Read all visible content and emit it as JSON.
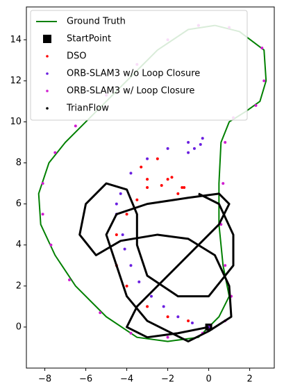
{
  "chart_data": {
    "type": "trajectory",
    "xlim": [
      -8.9,
      3.2
    ],
    "ylim": [
      -2.0,
      15.6
    ],
    "xticks": [
      {
        "value": -8,
        "label": "−8"
      },
      {
        "value": -6,
        "label": "−6"
      },
      {
        "value": -4,
        "label": "−4"
      },
      {
        "value": -2,
        "label": "−2"
      },
      0,
      2
    ],
    "yticks": [
      0,
      2,
      4,
      6,
      8,
      10,
      12,
      14
    ],
    "legend": "upper left",
    "series": [
      {
        "name": "Ground Truth",
        "color": "#008000",
        "mode": "line",
        "x": [
          0.3,
          1.5,
          2.7,
          2.8,
          2.5,
          1.8,
          1.0,
          0.6,
          0.5,
          0.5,
          0.7,
          1.0,
          0.5,
          -0.5,
          -2.0,
          -3.5,
          -5.0,
          -6.5,
          -7.5,
          -8.2,
          -8.3,
          -7.8,
          -7.0,
          -5.5,
          -4.0,
          -2.5,
          -1.0,
          0.3
        ],
        "y": [
          14.7,
          14.4,
          13.5,
          12.0,
          11.0,
          10.5,
          10.0,
          9.0,
          7.0,
          5.0,
          3.0,
          1.5,
          0.5,
          -0.5,
          -0.7,
          -0.5,
          0.5,
          2.0,
          3.5,
          5.0,
          6.5,
          8.0,
          9.0,
          10.5,
          12.0,
          13.5,
          14.5,
          14.7
        ]
      },
      {
        "name": "StartPoint",
        "color": "#000000",
        "mode": "square",
        "x": [
          0
        ],
        "y": [
          0
        ]
      },
      {
        "name": "DSO",
        "color": "#ff0000",
        "mode": "scatter",
        "x": [
          0.0,
          -1.0,
          -2.0,
          -3.0,
          -4.0,
          -4.5,
          -4.5,
          -4.0,
          -3.5,
          -3.0,
          -2.0,
          -1.3,
          -1.5,
          -2.3,
          -3.0,
          -3.3,
          -2.5,
          -1.8,
          -1.2
        ],
        "y": [
          0.0,
          0.3,
          0.5,
          1.0,
          2.0,
          3.0,
          4.5,
          5.5,
          6.2,
          6.8,
          7.2,
          6.8,
          6.5,
          6.9,
          7.2,
          7.8,
          8.2,
          7.3,
          6.8
        ]
      },
      {
        "name": "ORB-SLAM3 w/o Loop Closure",
        "color": "#6a1fe0",
        "mode": "scatter",
        "x": [
          0.0,
          -0.8,
          -1.5,
          -2.2,
          -2.8,
          -3.4,
          -3.8,
          -4.1,
          -4.2,
          -4.5,
          -4.5,
          -4.3,
          -3.8,
          -3.0,
          -2.0,
          -1.0,
          -0.3,
          -0.4,
          -0.7,
          -1.0
        ],
        "y": [
          0.0,
          0.2,
          0.5,
          1.0,
          1.5,
          2.2,
          3.0,
          3.8,
          4.5,
          5.5,
          6.0,
          6.5,
          7.5,
          8.2,
          8.7,
          9.0,
          9.2,
          8.9,
          8.7,
          8.5
        ]
      },
      {
        "name": "ORB-SLAM3 w/ Loop Closure",
        "color": "#d01ed0",
        "mode": "scatter",
        "x": [
          -0.5,
          1.0,
          2.6,
          2.7,
          2.3,
          1.2,
          0.8,
          0.7,
          0.6,
          0.8,
          1.1,
          0.8,
          -0.3,
          -2.0,
          -3.8,
          -5.3,
          -6.8,
          -7.7,
          -8.1,
          -8.1,
          -7.5,
          -6.5,
          -5.0,
          -3.5,
          -2.0,
          -0.5
        ],
        "y": [
          14.7,
          14.6,
          13.6,
          12.0,
          10.8,
          10.2,
          9.0,
          7.0,
          5.0,
          3.0,
          1.5,
          0.3,
          -0.3,
          -0.5,
          -0.3,
          0.7,
          2.3,
          4.0,
          5.5,
          7.0,
          8.5,
          9.8,
          11.3,
          12.8,
          14.0,
          14.7
        ]
      },
      {
        "name": "TrianFlow",
        "color": "#000000",
        "mode": "path",
        "x": [
          0.0,
          -1.5,
          -3.0,
          -4.0,
          -3.5,
          -2.5,
          -1.5,
          -0.5,
          0.5,
          1.0,
          0.5,
          -1.0,
          -3.0,
          -4.5,
          -5.0,
          -4.5,
          -4.0,
          -3.0,
          -2.0,
          -1.0,
          0.0,
          1.1,
          1.0,
          0.3,
          -1.0,
          -2.5,
          -4.3,
          -5.5,
          -6.3,
          -6.0,
          -5.0,
          -4.0,
          -3.5,
          -3.5,
          -3.0,
          -1.5,
          0.0,
          1.2,
          1.2,
          0.5,
          -0.5
        ],
        "y": [
          0.0,
          -0.3,
          -0.5,
          0.0,
          1.0,
          2.0,
          3.0,
          4.0,
          5.0,
          6.0,
          6.5,
          6.3,
          6.0,
          5.5,
          4.5,
          3.0,
          1.5,
          0.3,
          -0.2,
          -0.7,
          -0.2,
          0.5,
          2.0,
          3.5,
          4.3,
          4.5,
          4.2,
          3.5,
          4.5,
          6.0,
          7.0,
          6.7,
          5.5,
          4.0,
          2.5,
          1.5,
          1.5,
          3.0,
          4.5,
          6.0,
          6.5
        ]
      }
    ]
  }
}
